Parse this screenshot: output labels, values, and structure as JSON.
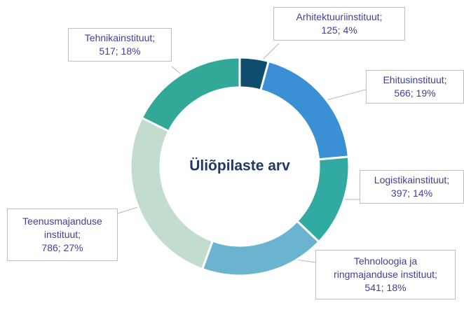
{
  "chart_data": {
    "type": "donut",
    "title": "Üliõpilaste arv",
    "categories": [
      "Arhitektuuriinstituut;",
      "Ehitusinstituut;",
      "Logistikainstituut;",
      "Tehnoloogia ja ringmajanduse instituut;",
      "Teenusmajanduse instituut;",
      "Tehnikainstituut;"
    ],
    "values": [
      125,
      566,
      397,
      541,
      786,
      517
    ],
    "value_labels": [
      "125; 4%",
      "566; 19%",
      "397; 14%",
      "541; 18%",
      "786; 27%",
      "517; 18%"
    ],
    "colors": [
      "#0e4d6b",
      "#3b8fd4",
      "#31aba1",
      "#6ab4cf",
      "#c2ddcd",
      "#32a898"
    ]
  }
}
